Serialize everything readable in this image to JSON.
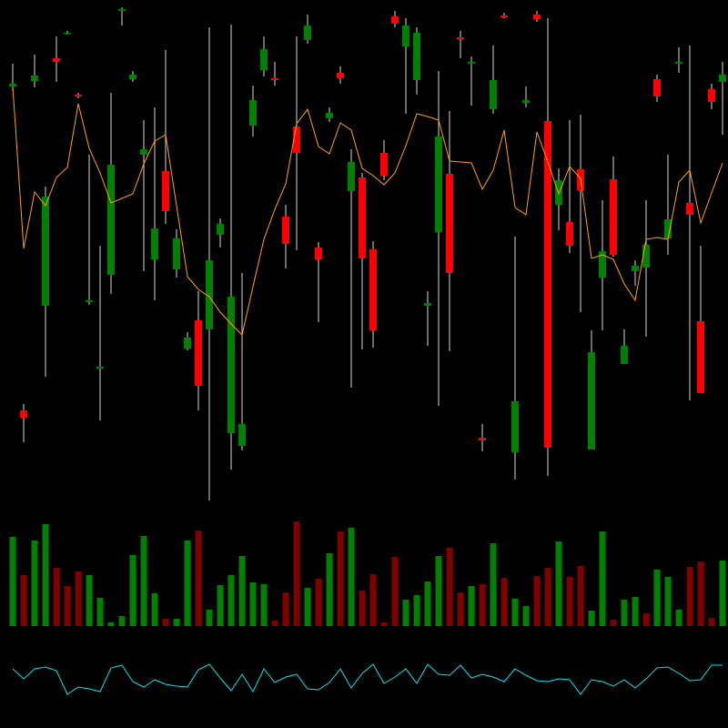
{
  "chart_data": [
    {
      "type": "candlestick",
      "open": [
        455,
        99,
        461,
        214,
        486,
        513,
        446,
        218,
        145,
        248,
        538,
        463,
        380,
        265,
        362,
        254,
        167,
        198,
        188,
        292,
        74,
        60,
        412,
        473,
        464,
        312,
        411,
        506,
        278,
        420,
        470,
        340,
        355,
        276,
        382,
        532,
        499,
        462,
        214,
        295,
        359,
        509,
        480,
        69,
        430,
        533,
        53,
        437,
        534,
        417,
        325,
        306,
        364,
        56,
        245,
        353,
        150,
        252,
        256,
        463,
        288,
        480,
        327,
        197,
        452,
        460
      ],
      "high": [
        480,
        106,
        490,
        345,
        510,
        516,
        448,
        380,
        280,
        448,
        542,
        472,
        418,
        432,
        495,
        298,
        185,
        230,
        520,
        310,
        523,
        250,
        456,
        510,
        482,
        325,
        510,
        534,
        284,
        432,
        477,
        386,
        360,
        285,
        396,
        538,
        530,
        520,
        230,
        472,
        428,
        516,
        488,
        84,
        500,
        536,
        290,
        455,
        538,
        530,
        365,
        418,
        424,
        187,
        330,
        378,
        188,
        264,
        330,
        468,
        380,
        498,
        500,
        280,
        458,
        482
      ],
      "low": [
        450,
        64,
        454,
        136,
        460,
        512,
        442,
        215,
        88,
        227,
        522,
        460,
        252,
        220,
        304,
        245,
        165,
        99,
        0,
        278,
        34,
        55,
        400,
        466,
        456,
        255,
        275,
        502,
        196,
        416,
        458,
        124,
        166,
        168,
        352,
        520,
        425,
        446,
        170,
        104,
        164,
        486,
        434,
        54,
        425,
        530,
        23,
        432,
        526,
        27,
        297,
        272,
        207,
        56,
        187,
        268,
        150,
        236,
        180,
        438,
        270,
        470,
        110,
        118,
        430,
        402
      ],
      "close": [
        458,
        91,
        467,
        334,
        482,
        514,
        444,
        220,
        147,
        369,
        540,
        468,
        386,
        299,
        318,
        288,
        179,
        126,
        264,
        304,
        224,
        84,
        440,
        496,
        462,
        282,
        382,
        522,
        265,
        426,
        464,
        372,
        266,
        187,
        357,
        524,
        522,
        514,
        217,
        400,
        250,
        507,
        482,
        66,
        462,
        531,
        109,
        440,
        529,
        58,
        352,
        280,
        341,
        163,
        274,
        270,
        170,
        258,
        281,
        444,
        309,
        482,
        314,
        118,
        438,
        468
      ],
      "up_color": "#008000",
      "down_color": "#ff0000",
      "wick_color": "#d8d8d8",
      "ylim": [
        0,
        550
      ],
      "series": [
        {
          "color": "#ffa500",
          "values": [
            455,
            277,
            339,
            324,
            355,
            366,
            436,
            387,
            360,
            327,
            332,
            337,
            370,
            395,
            402,
            324,
            246,
            232,
            224,
            207,
            194,
            182,
            235,
            287,
            320,
            348,
            414,
            430,
            389,
            381,
            415,
            407,
            365,
            357,
            347,
            360,
            390,
            425,
            422,
            418,
            373,
            372,
            371,
            342,
            363,
            407,
            322,
            314,
            405,
            372,
            337,
            367,
            354,
            266,
            270,
            265,
            238,
            220,
            287,
            289,
            287,
            350,
            363,
            305,
            338,
            371
          ]
        }
      ]
    },
    {
      "type": "bar",
      "values": [
        98,
        56,
        94,
        112,
        64,
        44,
        60,
        56,
        31,
        4,
        11,
        78,
        99,
        36,
        8,
        8,
        94,
        105,
        18,
        45,
        56,
        77,
        48,
        46,
        6,
        37,
        115,
        42,
        52,
        80,
        104,
        108,
        39,
        57,
        4,
        76,
        29,
        34,
        49,
        77,
        86,
        37,
        44,
        46,
        91,
        53,
        30,
        22,
        55,
        64,
        93,
        54,
        66,
        17,
        104,
        7,
        29,
        32,
        14,
        62,
        54,
        18,
        65,
        71,
        9,
        72
      ],
      "colors": [
        "#008000",
        "#800000",
        "#008000",
        "#008000",
        "#800000",
        "#800000",
        "#800000",
        "#008000",
        "#008000",
        "#008000",
        "#008000",
        "#008000",
        "#008000",
        "#008000",
        "#800000",
        "#008000",
        "#008000",
        "#800000",
        "#008000",
        "#008000",
        "#008000",
        "#008000",
        "#008000",
        "#008000",
        "#800000",
        "#800000",
        "#800000",
        "#008000",
        "#800000",
        "#008000",
        "#800000",
        "#008000",
        "#800000",
        "#800000",
        "#800000",
        "#800000",
        "#008000",
        "#008000",
        "#008000",
        "#008000",
        "#800000",
        "#800000",
        "#008000",
        "#800000",
        "#008000",
        "#800000",
        "#008000",
        "#008000",
        "#800000",
        "#800000",
        "#008000",
        "#800000",
        "#800000",
        "#008000",
        "#008000",
        "#800000",
        "#008000",
        "#008000",
        "#800000",
        "#008000",
        "#008000",
        "#008000",
        "#800000",
        "#800000",
        "#800000",
        "#008000"
      ],
      "ylim": [
        0,
        120
      ]
    },
    {
      "type": "line",
      "values": [
        35,
        24,
        35,
        37,
        33,
        7,
        15,
        13,
        10,
        36,
        39,
        21,
        15,
        23,
        18,
        16,
        15,
        34,
        40,
        25,
        11,
        29,
        10,
        35,
        20,
        26,
        29,
        13,
        12,
        20,
        35,
        14,
        30,
        40,
        19,
        26,
        35,
        19,
        40,
        29,
        28,
        39,
        25,
        29,
        26,
        21,
        35,
        28,
        22,
        21,
        24,
        23,
        7,
        23,
        21,
        16,
        23,
        14,
        24,
        36,
        37,
        30,
        22,
        23,
        39,
        39
      ],
      "color": "#00e5ee",
      "ylim": [
        0,
        45
      ]
    }
  ]
}
